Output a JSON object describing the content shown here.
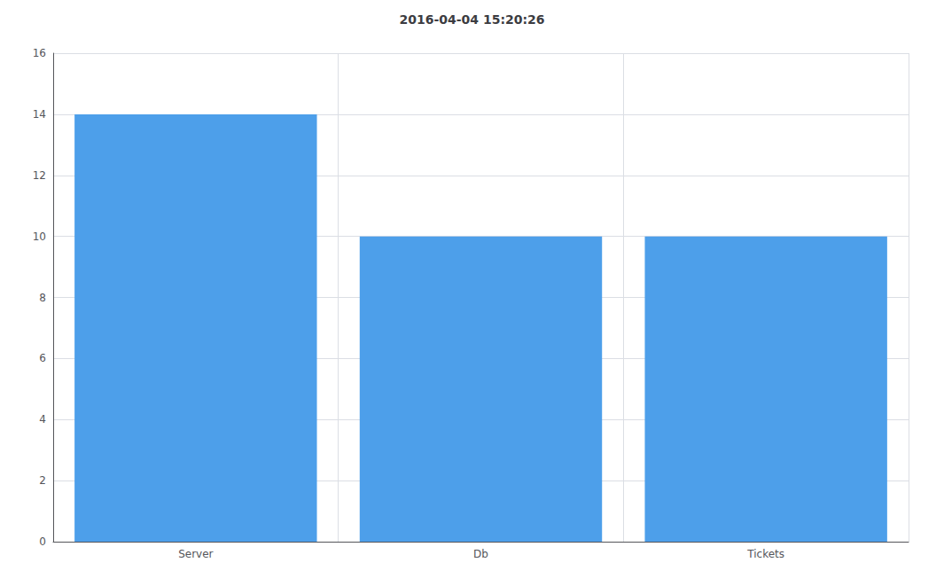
{
  "chart_data": {
    "type": "bar",
    "title": "2016-04-04 15:20:26",
    "categories": [
      "Server",
      "Db",
      "Tickets"
    ],
    "values": [
      14,
      10,
      10
    ],
    "color": "#4d9fea",
    "ylim": [
      0,
      16
    ],
    "yticks": [
      0,
      2,
      4,
      6,
      8,
      10,
      12,
      14,
      16
    ],
    "grid": true
  }
}
